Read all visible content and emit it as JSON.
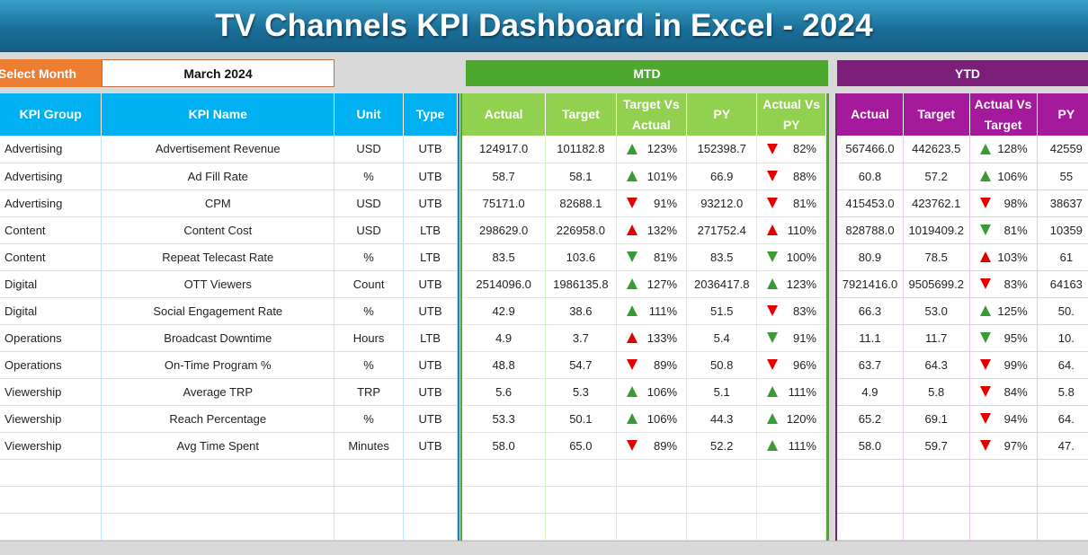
{
  "title": "TV Channels KPI Dashboard in Excel - 2024",
  "filter": {
    "label": "Select Month",
    "value": "March 2024"
  },
  "sections": {
    "mtd": "MTD",
    "ytd": "YTD"
  },
  "kpi_headers": [
    "KPI Group",
    "KPI Name",
    "Unit",
    "Type"
  ],
  "mtd_headers": [
    "Actual",
    "Target",
    "Target Vs Actual",
    "PY",
    "Actual Vs PY"
  ],
  "ytd_headers": [
    "Actual",
    "Target",
    "Actual Vs Target",
    "PY"
  ],
  "rows": [
    {
      "group": "Advertising",
      "name": "Advertisement Revenue",
      "unit": "USD",
      "type": "UTB",
      "mtd": {
        "actual": "124917.0",
        "target": "101182.8",
        "tva": "123%",
        "tva_dir": "up",
        "tva_status": "good",
        "py": "152398.7",
        "avp": "82%",
        "avp_dir": "down",
        "avp_status": "bad"
      },
      "ytd": {
        "actual": "567466.0",
        "target": "442623.5",
        "avt": "128%",
        "avt_dir": "up",
        "avt_status": "good",
        "py": "42559"
      }
    },
    {
      "group": "Advertising",
      "name": "Ad Fill Rate",
      "unit": "%",
      "type": "UTB",
      "mtd": {
        "actual": "58.7",
        "target": "58.1",
        "tva": "101%",
        "tva_dir": "up",
        "tva_status": "good",
        "py": "66.9",
        "avp": "88%",
        "avp_dir": "down",
        "avp_status": "bad"
      },
      "ytd": {
        "actual": "60.8",
        "target": "57.2",
        "avt": "106%",
        "avt_dir": "up",
        "avt_status": "good",
        "py": "55"
      }
    },
    {
      "group": "Advertising",
      "name": "CPM",
      "unit": "USD",
      "type": "UTB",
      "mtd": {
        "actual": "75171.0",
        "target": "82688.1",
        "tva": "91%",
        "tva_dir": "down",
        "tva_status": "bad",
        "py": "93212.0",
        "avp": "81%",
        "avp_dir": "down",
        "avp_status": "bad"
      },
      "ytd": {
        "actual": "415453.0",
        "target": "423762.1",
        "avt": "98%",
        "avt_dir": "down",
        "avt_status": "bad",
        "py": "38637"
      }
    },
    {
      "group": "Content",
      "name": "Content Cost",
      "unit": "USD",
      "type": "LTB",
      "mtd": {
        "actual": "298629.0",
        "target": "226958.0",
        "tva": "132%",
        "tva_dir": "up",
        "tva_status": "bad",
        "py": "271752.4",
        "avp": "110%",
        "avp_dir": "up",
        "avp_status": "bad"
      },
      "ytd": {
        "actual": "828788.0",
        "target": "1019409.2",
        "avt": "81%",
        "avt_dir": "down",
        "avt_status": "good",
        "py": "10359"
      }
    },
    {
      "group": "Content",
      "name": "Repeat Telecast Rate",
      "unit": "%",
      "type": "LTB",
      "mtd": {
        "actual": "83.5",
        "target": "103.6",
        "tva": "81%",
        "tva_dir": "down",
        "tva_status": "good",
        "py": "83.5",
        "avp": "100%",
        "avp_dir": "down",
        "avp_status": "good"
      },
      "ytd": {
        "actual": "80.9",
        "target": "78.5",
        "avt": "103%",
        "avt_dir": "up",
        "avt_status": "bad",
        "py": "61"
      }
    },
    {
      "group": "Digital",
      "name": "OTT Viewers",
      "unit": "Count",
      "type": "UTB",
      "mtd": {
        "actual": "2514096.0",
        "target": "1986135.8",
        "tva": "127%",
        "tva_dir": "up",
        "tva_status": "good",
        "py": "2036417.8",
        "avp": "123%",
        "avp_dir": "up",
        "avp_status": "good"
      },
      "ytd": {
        "actual": "7921416.0",
        "target": "9505699.2",
        "avt": "83%",
        "avt_dir": "down",
        "avt_status": "bad",
        "py": "64163"
      }
    },
    {
      "group": "Digital",
      "name": "Social Engagement Rate",
      "unit": "%",
      "type": "UTB",
      "mtd": {
        "actual": "42.9",
        "target": "38.6",
        "tva": "111%",
        "tva_dir": "up",
        "tva_status": "good",
        "py": "51.5",
        "avp": "83%",
        "avp_dir": "down",
        "avp_status": "bad"
      },
      "ytd": {
        "actual": "66.3",
        "target": "53.0",
        "avt": "125%",
        "avt_dir": "up",
        "avt_status": "good",
        "py": "50."
      }
    },
    {
      "group": "Operations",
      "name": "Broadcast Downtime",
      "unit": "Hours",
      "type": "LTB",
      "mtd": {
        "actual": "4.9",
        "target": "3.7",
        "tva": "133%",
        "tva_dir": "up",
        "tva_status": "bad",
        "py": "5.4",
        "avp": "91%",
        "avp_dir": "down",
        "avp_status": "good"
      },
      "ytd": {
        "actual": "11.1",
        "target": "11.7",
        "avt": "95%",
        "avt_dir": "down",
        "avt_status": "good",
        "py": "10."
      }
    },
    {
      "group": "Operations",
      "name": "On-Time Program %",
      "unit": "%",
      "type": "UTB",
      "mtd": {
        "actual": "48.8",
        "target": "54.7",
        "tva": "89%",
        "tva_dir": "down",
        "tva_status": "bad",
        "py": "50.8",
        "avp": "96%",
        "avp_dir": "down",
        "avp_status": "bad"
      },
      "ytd": {
        "actual": "63.7",
        "target": "64.3",
        "avt": "99%",
        "avt_dir": "down",
        "avt_status": "bad",
        "py": "64."
      }
    },
    {
      "group": "Viewership",
      "name": "Average TRP",
      "unit": "TRP",
      "type": "UTB",
      "mtd": {
        "actual": "5.6",
        "target": "5.3",
        "tva": "106%",
        "tva_dir": "up",
        "tva_status": "good",
        "py": "5.1",
        "avp": "111%",
        "avp_dir": "up",
        "avp_status": "good"
      },
      "ytd": {
        "actual": "4.9",
        "target": "5.8",
        "avt": "84%",
        "avt_dir": "down",
        "avt_status": "bad",
        "py": "5.8"
      }
    },
    {
      "group": "Viewership",
      "name": "Reach Percentage",
      "unit": "%",
      "type": "UTB",
      "mtd": {
        "actual": "53.3",
        "target": "50.1",
        "tva": "106%",
        "tva_dir": "up",
        "tva_status": "good",
        "py": "44.3",
        "avp": "120%",
        "avp_dir": "up",
        "avp_status": "good"
      },
      "ytd": {
        "actual": "65.2",
        "target": "69.1",
        "avt": "94%",
        "avt_dir": "down",
        "avt_status": "bad",
        "py": "64."
      }
    },
    {
      "group": "Viewership",
      "name": "Avg Time Spent",
      "unit": "Minutes",
      "type": "UTB",
      "mtd": {
        "actual": "58.0",
        "target": "65.0",
        "tva": "89%",
        "tva_dir": "down",
        "tva_status": "bad",
        "py": "52.2",
        "avp": "111%",
        "avp_dir": "up",
        "avp_status": "good"
      },
      "ytd": {
        "actual": "58.0",
        "target": "59.7",
        "avt": "97%",
        "avt_dir": "down",
        "avt_status": "bad",
        "py": "47."
      }
    }
  ],
  "colors": {
    "title_bg": "#1a6f99",
    "select_label_bg": "#ed7d31",
    "mtd_head": "#4ea72e",
    "ytd_head": "#7b1f7a",
    "kpi_header": "#00b0f0",
    "mtd_header": "#92d050",
    "ytd_header": "#a5199c",
    "good_arrow": "#3a9b35",
    "bad_arrow": "#e00000"
  }
}
